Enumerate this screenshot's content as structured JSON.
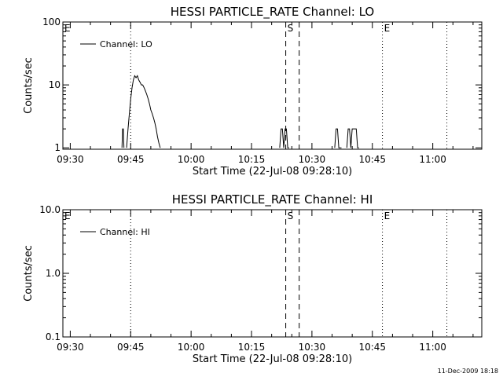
{
  "chart_data": [
    {
      "type": "line",
      "title": "HESSI PARTICLE_RATE Channel: LO",
      "xlabel": "Start Time (22-Jul-08 09:28:10)",
      "ylabel": "Counts/sec",
      "yscale": "log",
      "ylim": [
        0.95,
        100
      ],
      "xlim": [
        "09:28:10",
        "11:12:10"
      ],
      "ytick_values": [
        1,
        10,
        100
      ],
      "ytick_labels": [
        "1",
        "10",
        "100"
      ],
      "xtick_labels": [
        "09:30",
        "09:45",
        "10:00",
        "10:15",
        "10:30",
        "10:45",
        "11:00"
      ],
      "legend": {
        "position": "top-left",
        "entries": [
          "Channel: LO"
        ]
      },
      "markers": [
        {
          "label": "E",
          "time": "09:28:10",
          "style": "dotted"
        },
        {
          "label": "",
          "time": "09:45:00",
          "style": "dotted"
        },
        {
          "label": "S",
          "time": "10:23:30",
          "style": "dashed"
        },
        {
          "label": "",
          "time": "10:26:50",
          "style": "dashed"
        },
        {
          "label": "E",
          "time": "10:47:30",
          "style": "dotted"
        },
        {
          "label": "",
          "time": "11:03:30",
          "style": "dotted"
        }
      ],
      "series": [
        {
          "name": "Channel: LO",
          "segments": [
            {
              "x": [
                "09:42:50",
                "09:43:00",
                "09:43:10",
                "09:43:20"
              ],
              "y": [
                1,
                2,
                2,
                1
              ]
            },
            {
              "x": [
                "09:44:00",
                "09:44:20",
                "09:44:40",
                "09:45:00",
                "09:45:20",
                "09:45:40",
                "09:46:00",
                "09:46:20",
                "09:46:40",
                "09:47:00",
                "09:47:20",
                "09:47:40",
                "09:48:00",
                "09:48:20",
                "09:48:40",
                "09:49:00",
                "09:49:20",
                "09:49:40",
                "09:50:00",
                "09:50:20",
                "09:50:40",
                "09:51:00",
                "09:51:20",
                "09:51:40",
                "09:52:00",
                "09:52:20"
              ],
              "y": [
                1,
                2,
                3.5,
                6,
                9,
                12,
                14,
                13,
                14,
                12,
                11,
                10,
                10,
                9,
                8,
                7,
                6,
                5,
                4,
                3.5,
                3,
                2.5,
                2,
                1.5,
                1.2,
                1
              ]
            },
            {
              "x": [
                "10:22:00",
                "10:22:20",
                "10:22:40",
                "10:23:00",
                "10:23:20",
                "10:23:40",
                "10:24:00",
                "10:24:20"
              ],
              "y": [
                1,
                2,
                2,
                1,
                2,
                2,
                1,
                1
              ]
            },
            {
              "x": [
                "10:35:40",
                "10:36:00",
                "10:36:20",
                "10:36:40",
                "10:37:00",
                "10:37:20"
              ],
              "y": [
                1,
                2,
                2,
                1,
                1,
                1
              ]
            },
            {
              "x": [
                "10:38:40",
                "10:39:00",
                "10:39:20",
                "10:39:40",
                "10:40:00",
                "10:40:20",
                "10:40:40",
                "10:41:00",
                "10:41:20",
                "10:41:40"
              ],
              "y": [
                1,
                2,
                2,
                1,
                2,
                2,
                2,
                2,
                1,
                1
              ]
            }
          ]
        }
      ]
    },
    {
      "type": "line",
      "title": "HESSI PARTICLE_RATE Channel: HI",
      "xlabel": "Start Time (22-Jul-08 09:28:10)",
      "ylabel": "Counts/sec",
      "yscale": "log",
      "ylim": [
        0.1,
        10
      ],
      "xlim": [
        "09:28:10",
        "11:12:10"
      ],
      "ytick_values": [
        0.1,
        1,
        10
      ],
      "ytick_labels": [
        "0.1",
        "1.0",
        "10.0"
      ],
      "xtick_labels": [
        "09:30",
        "09:45",
        "10:00",
        "10:15",
        "10:30",
        "10:45",
        "11:00"
      ],
      "legend": {
        "position": "top-left",
        "entries": [
          "Channel: HI"
        ]
      },
      "markers": [
        {
          "label": "E",
          "time": "09:28:10",
          "style": "dotted"
        },
        {
          "label": "",
          "time": "09:45:00",
          "style": "dotted"
        },
        {
          "label": "S",
          "time": "10:23:30",
          "style": "dashed"
        },
        {
          "label": "",
          "time": "10:26:50",
          "style": "dashed"
        },
        {
          "label": "E",
          "time": "10:47:30",
          "style": "dotted"
        },
        {
          "label": "",
          "time": "11:03:30",
          "style": "dotted"
        }
      ],
      "series": [
        {
          "name": "Channel: HI",
          "segments": []
        }
      ]
    }
  ],
  "footer": {
    "stamp": "11-Dec-2009 18:18"
  }
}
